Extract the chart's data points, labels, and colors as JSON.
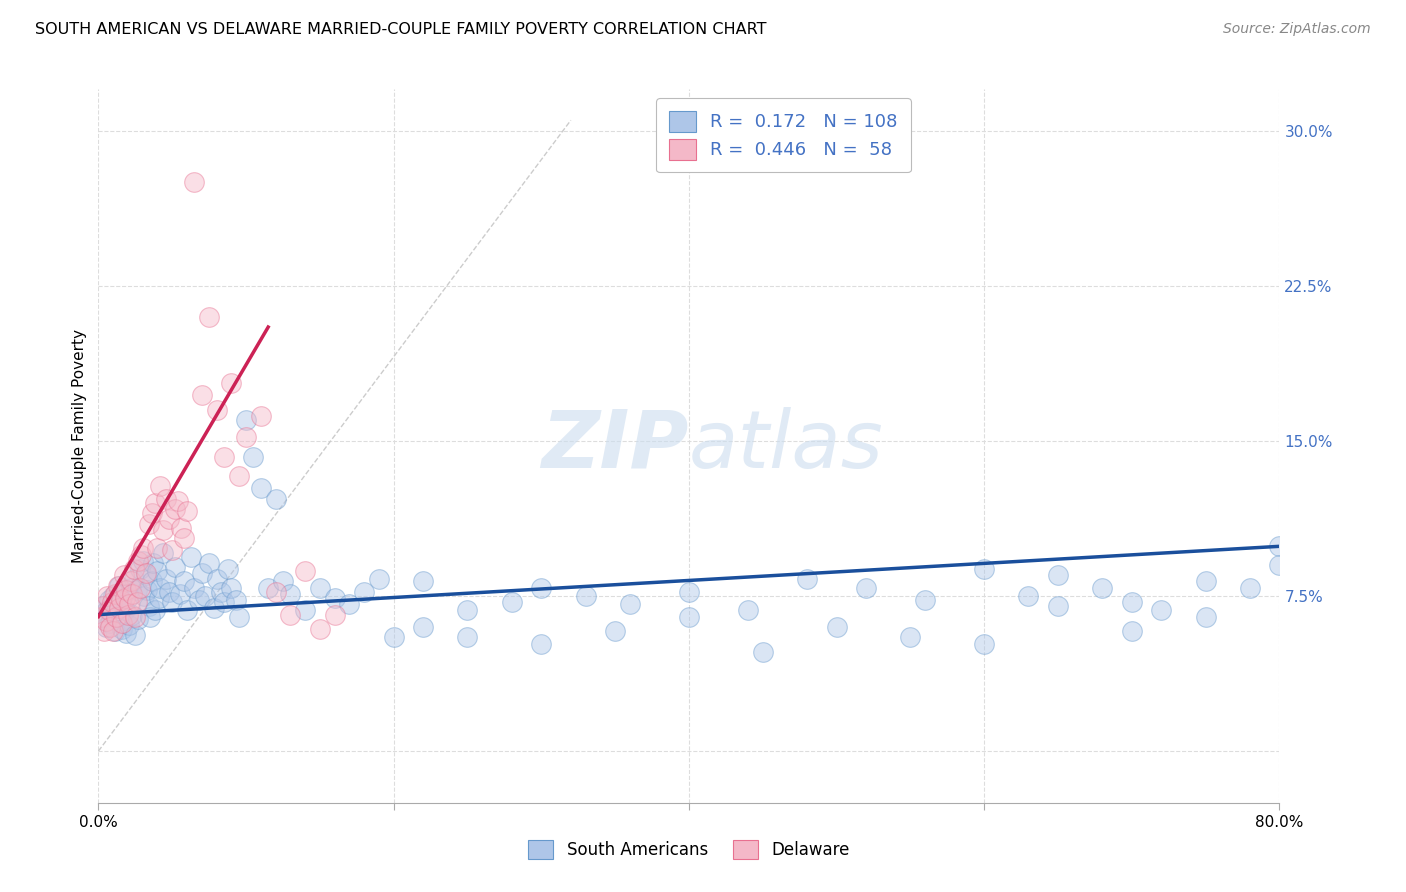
{
  "title": "SOUTH AMERICAN VS DELAWARE MARRIED-COUPLE FAMILY POVERTY CORRELATION CHART",
  "source": "Source: ZipAtlas.com",
  "ylabel": "Married-Couple Family Poverty",
  "ytick_values": [
    0.0,
    0.075,
    0.15,
    0.225,
    0.3
  ],
  "ytick_labels": [
    "",
    "7.5%",
    "15.0%",
    "22.5%",
    "30.0%"
  ],
  "xmin": 0.0,
  "xmax": 0.8,
  "ymin": -0.025,
  "ymax": 0.32,
  "watermark_zip": "ZIP",
  "watermark_atlas": "atlas",
  "legend_r1": "R =  0.172   N = 108",
  "legend_r2": "R =  0.446   N =  58",
  "legend_bottom_1": "South Americans",
  "legend_bottom_2": "Delaware",
  "blue_trend": [
    0.0,
    0.066,
    0.8,
    0.099
  ],
  "pink_trend": [
    0.0,
    0.065,
    0.115,
    0.205
  ],
  "dashed_line": [
    0.0,
    0.0,
    0.32,
    0.305
  ],
  "sa_x": [
    0.003,
    0.004,
    0.005,
    0.006,
    0.007,
    0.008,
    0.009,
    0.01,
    0.011,
    0.012,
    0.013,
    0.014,
    0.015,
    0.015,
    0.016,
    0.017,
    0.018,
    0.019,
    0.02,
    0.021,
    0.022,
    0.023,
    0.024,
    0.025,
    0.026,
    0.027,
    0.028,
    0.03,
    0.031,
    0.032,
    0.033,
    0.034,
    0.035,
    0.036,
    0.037,
    0.038,
    0.04,
    0.041,
    0.042,
    0.044,
    0.046,
    0.048,
    0.05,
    0.052,
    0.055,
    0.058,
    0.06,
    0.063,
    0.065,
    0.068,
    0.07,
    0.072,
    0.075,
    0.078,
    0.08,
    0.083,
    0.085,
    0.088,
    0.09,
    0.093,
    0.095,
    0.1,
    0.105,
    0.11,
    0.115,
    0.12,
    0.125,
    0.13,
    0.14,
    0.15,
    0.16,
    0.17,
    0.18,
    0.19,
    0.2,
    0.22,
    0.25,
    0.28,
    0.3,
    0.33,
    0.36,
    0.4,
    0.44,
    0.48,
    0.52,
    0.56,
    0.6,
    0.63,
    0.65,
    0.68,
    0.7,
    0.72,
    0.75,
    0.78,
    0.8,
    0.22,
    0.25,
    0.3,
    0.35,
    0.4,
    0.45,
    0.5,
    0.55,
    0.6,
    0.65,
    0.7,
    0.75,
    0.8
  ],
  "sa_y": [
    0.07,
    0.065,
    0.06,
    0.068,
    0.073,
    0.062,
    0.069,
    0.075,
    0.058,
    0.071,
    0.065,
    0.08,
    0.063,
    0.072,
    0.059,
    0.076,
    0.068,
    0.057,
    0.074,
    0.061,
    0.079,
    0.066,
    0.083,
    0.056,
    0.078,
    0.064,
    0.088,
    0.092,
    0.075,
    0.085,
    0.078,
    0.07,
    0.065,
    0.082,
    0.091,
    0.068,
    0.087,
    0.074,
    0.079,
    0.096,
    0.083,
    0.077,
    0.072,
    0.089,
    0.076,
    0.082,
    0.068,
    0.094,
    0.079,
    0.073,
    0.086,
    0.075,
    0.091,
    0.069,
    0.083,
    0.077,
    0.072,
    0.088,
    0.079,
    0.073,
    0.065,
    0.16,
    0.142,
    0.127,
    0.079,
    0.122,
    0.082,
    0.076,
    0.068,
    0.079,
    0.074,
    0.071,
    0.077,
    0.083,
    0.055,
    0.082,
    0.068,
    0.072,
    0.079,
    0.075,
    0.071,
    0.077,
    0.068,
    0.083,
    0.079,
    0.073,
    0.088,
    0.075,
    0.085,
    0.079,
    0.072,
    0.068,
    0.082,
    0.079,
    0.099,
    0.06,
    0.055,
    0.052,
    0.058,
    0.065,
    0.048,
    0.06,
    0.055,
    0.052,
    0.07,
    0.058,
    0.065,
    0.09
  ],
  "de_x": [
    0.002,
    0.003,
    0.004,
    0.005,
    0.006,
    0.007,
    0.008,
    0.009,
    0.01,
    0.011,
    0.012,
    0.013,
    0.014,
    0.015,
    0.016,
    0.017,
    0.018,
    0.019,
    0.02,
    0.021,
    0.022,
    0.023,
    0.024,
    0.025,
    0.026,
    0.027,
    0.028,
    0.029,
    0.03,
    0.032,
    0.034,
    0.036,
    0.038,
    0.04,
    0.042,
    0.044,
    0.046,
    0.048,
    0.05,
    0.052,
    0.054,
    0.056,
    0.058,
    0.06,
    0.065,
    0.07,
    0.075,
    0.08,
    0.085,
    0.09,
    0.095,
    0.1,
    0.11,
    0.12,
    0.13,
    0.14,
    0.15,
    0.16
  ],
  "de_y": [
    0.065,
    0.07,
    0.058,
    0.063,
    0.075,
    0.068,
    0.06,
    0.072,
    0.058,
    0.076,
    0.065,
    0.08,
    0.069,
    0.073,
    0.062,
    0.085,
    0.074,
    0.078,
    0.066,
    0.071,
    0.082,
    0.076,
    0.088,
    0.065,
    0.072,
    0.092,
    0.079,
    0.095,
    0.098,
    0.086,
    0.11,
    0.115,
    0.12,
    0.098,
    0.128,
    0.107,
    0.122,
    0.112,
    0.097,
    0.117,
    0.121,
    0.108,
    0.103,
    0.116,
    0.275,
    0.172,
    0.21,
    0.165,
    0.142,
    0.178,
    0.133,
    0.152,
    0.162,
    0.077,
    0.066,
    0.087,
    0.059,
    0.066
  ],
  "scatter_size": 200,
  "scatter_alpha": 0.45,
  "blue_dot_color": "#aec6e8",
  "blue_edge_color": "#6699cc",
  "pink_dot_color": "#f4b8c8",
  "pink_edge_color": "#e87090",
  "trend_blue_color": "#1a4f9c",
  "trend_pink_color": "#cc2255",
  "dashed_color": "#cccccc",
  "grid_color": "#dddddd",
  "right_tick_color": "#4472c4",
  "background_color": "#ffffff",
  "title_fontsize": 11.5,
  "source_fontsize": 10,
  "tick_fontsize": 11,
  "ylabel_fontsize": 11
}
